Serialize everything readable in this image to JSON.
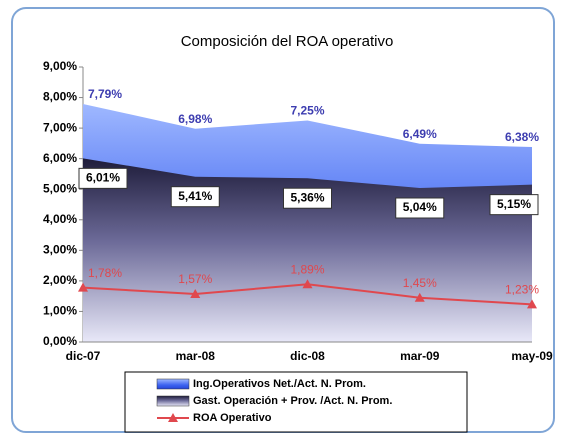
{
  "chart_data": {
    "type": "area",
    "title": "Composición del ROA operativo",
    "categories": [
      "dic-07",
      "mar-08",
      "dic-08",
      "mar-09",
      "may-09"
    ],
    "series": [
      {
        "name": "Ing.Operativos Net./Act. N. Prom.",
        "type": "area",
        "color": "#3d63f0",
        "values": [
          7.79,
          6.98,
          7.25,
          6.49,
          6.38
        ],
        "value_labels": [
          "7,79%",
          "6,98%",
          "7,25%",
          "6,49%",
          "6,38%"
        ]
      },
      {
        "name": "Gast. Operación + Prov. /Act. N. Prom.",
        "type": "area",
        "color": "#2a2850",
        "values": [
          6.01,
          5.41,
          5.36,
          5.04,
          5.15
        ],
        "value_labels": [
          "6,01%",
          "5,41%",
          "5,36%",
          "5,04%",
          "5,15%"
        ]
      },
      {
        "name": "ROA Operativo",
        "type": "line",
        "color": "#e0484e",
        "values": [
          1.78,
          1.57,
          1.89,
          1.45,
          1.23
        ],
        "value_labels": [
          "1,78%",
          "1,57%",
          "1,89%",
          "1,45%",
          "1,23%"
        ]
      }
    ],
    "ylim": [
      0,
      9
    ],
    "yticks": [
      {
        "value": 0,
        "label": "0,00%"
      },
      {
        "value": 1,
        "label": "1,00%"
      },
      {
        "value": 2,
        "label": "2,00%"
      },
      {
        "value": 3,
        "label": "3,00%"
      },
      {
        "value": 4,
        "label": "4,00%"
      },
      {
        "value": 5,
        "label": "5,00%"
      },
      {
        "value": 6,
        "label": "6,00%"
      },
      {
        "value": 7,
        "label": "7,00%"
      },
      {
        "value": 8,
        "label": "8,00%"
      },
      {
        "value": 9,
        "label": "9,00%"
      }
    ],
    "legend": "bottom"
  }
}
